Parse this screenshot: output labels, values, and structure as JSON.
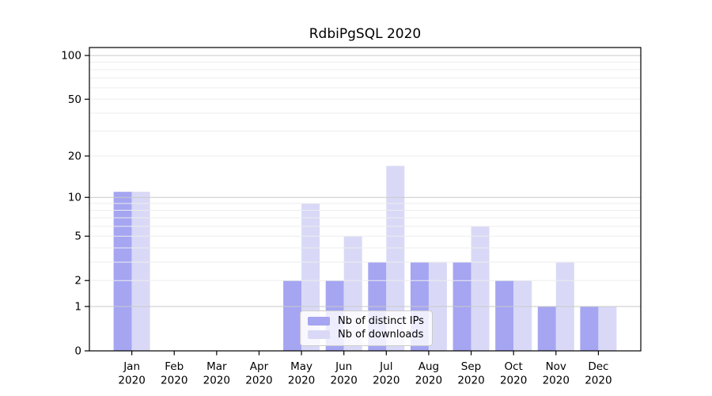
{
  "title": "RdbiPgSQL 2020",
  "colors": {
    "bar_distinct_ips": "#a5a5f2",
    "bar_downloads": "#d9d9f7",
    "grid_major": "#c9c9c9",
    "grid_minor": "#ededed",
    "axis": "#000000",
    "text": "#000000",
    "legend_border": "#cccccc"
  },
  "legend": {
    "position": "lower center",
    "items": [
      {
        "label": "Nb of distinct IPs",
        "color": "#a5a5f2"
      },
      {
        "label": "Nb of downloads",
        "color": "#d9d9f7"
      }
    ]
  },
  "chart_data": {
    "type": "bar",
    "title": "RdbiPgSQL 2020",
    "categories": [
      "Jan",
      "Feb",
      "Mar",
      "Apr",
      "May",
      "Jun",
      "Jul",
      "Aug",
      "Sep",
      "Oct",
      "Nov",
      "Dec"
    ],
    "year_label": "2020",
    "series": [
      {
        "name": "Nb of distinct IPs",
        "color": "#a5a5f2",
        "values": [
          11,
          0,
          0,
          0,
          2,
          2,
          3,
          3,
          3,
          2,
          1,
          1
        ]
      },
      {
        "name": "Nb of downloads",
        "color": "#d9d9f7",
        "values": [
          11,
          0,
          0,
          0,
          9,
          5,
          17,
          3,
          6,
          2,
          3,
          1
        ]
      }
    ],
    "xlabel": "",
    "ylabel": "",
    "y_scale": "log1p",
    "ylim": [
      0,
      113.4
    ],
    "y_ticks": [
      0,
      1,
      2,
      5,
      10,
      20,
      50,
      100
    ],
    "y_gridlines_major": [
      1,
      10,
      100
    ],
    "y_gridlines_minor": [
      2,
      3,
      4,
      5,
      6,
      7,
      8,
      9,
      20,
      30,
      40,
      50,
      60,
      70,
      80,
      90
    ],
    "grid": true,
    "legend_position": "lower center"
  }
}
